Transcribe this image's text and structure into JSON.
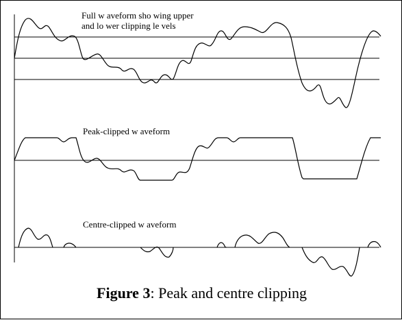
{
  "panels": {
    "full": {
      "label_line1": "Full w aveform sho wing upper",
      "label_line2": "and lo wer clipping le vels"
    },
    "peak": {
      "label": "Peak-clipped w aveform"
    },
    "centre": {
      "label": "Centre-clipped w aveform"
    }
  },
  "caption": {
    "figure": "Figure 3",
    "sep": ": ",
    "text": "Peak and centre clipping"
  }
}
